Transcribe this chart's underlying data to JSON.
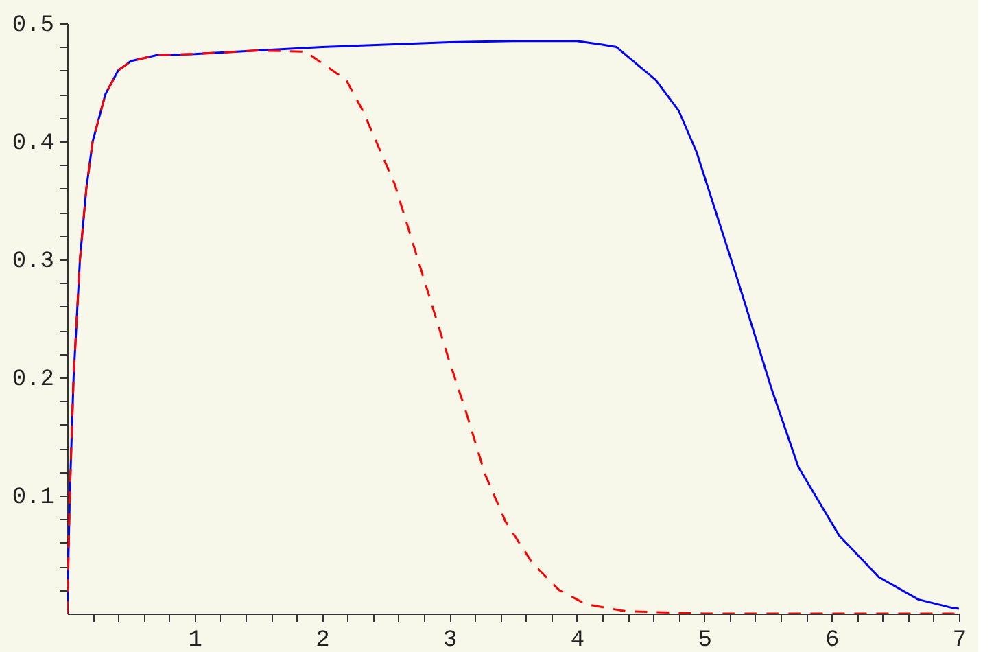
{
  "chart_data": {
    "type": "line",
    "xlim": [
      0,
      7
    ],
    "ylim": [
      0,
      0.5
    ],
    "xticks": [
      {
        "value": 0.2,
        "label": null
      },
      {
        "value": 0.4,
        "label": null
      },
      {
        "value": 0.6,
        "label": null
      },
      {
        "value": 0.8,
        "label": null
      },
      1,
      {
        "value": 1.2,
        "label": null
      },
      {
        "value": 1.4,
        "label": null
      },
      {
        "value": 1.6,
        "label": null
      },
      {
        "value": 1.8,
        "label": null
      },
      2,
      {
        "value": 2.2,
        "label": null
      },
      {
        "value": 2.4,
        "label": null
      },
      {
        "value": 2.6,
        "label": null
      },
      {
        "value": 2.8,
        "label": null
      },
      3,
      {
        "value": 3.2,
        "label": null
      },
      {
        "value": 3.4,
        "label": null
      },
      {
        "value": 3.6,
        "label": null
      },
      {
        "value": 3.8,
        "label": null
      },
      4,
      {
        "value": 4.2,
        "label": null
      },
      {
        "value": 4.4,
        "label": null
      },
      {
        "value": 4.6,
        "label": null
      },
      {
        "value": 4.8,
        "label": null
      },
      5,
      {
        "value": 5.2,
        "label": null
      },
      {
        "value": 5.4,
        "label": null
      },
      {
        "value": 5.6,
        "label": null
      },
      {
        "value": 5.8,
        "label": null
      },
      6,
      {
        "value": 6.2,
        "label": null
      },
      {
        "value": 6.4,
        "label": null
      },
      {
        "value": 6.6,
        "label": null
      },
      {
        "value": 6.8,
        "label": null
      },
      7
    ],
    "yticks": [
      {
        "value": 0.02,
        "label": null
      },
      {
        "value": 0.04,
        "label": null
      },
      {
        "value": 0.06,
        "label": null
      },
      {
        "value": 0.08,
        "label": null
      },
      {
        "value": 0.1,
        "label": "0.1"
      },
      {
        "value": 0.12,
        "label": null
      },
      {
        "value": 0.14,
        "label": null
      },
      {
        "value": 0.16,
        "label": null
      },
      {
        "value": 0.18,
        "label": null
      },
      {
        "value": 0.2,
        "label": "0.2"
      },
      {
        "value": 0.22,
        "label": null
      },
      {
        "value": 0.24,
        "label": null
      },
      {
        "value": 0.26,
        "label": null
      },
      {
        "value": 0.28,
        "label": null
      },
      {
        "value": 0.3,
        "label": "0.3"
      },
      {
        "value": 0.32,
        "label": null
      },
      {
        "value": 0.34,
        "label": null
      },
      {
        "value": 0.36,
        "label": null
      },
      {
        "value": 0.38,
        "label": null
      },
      {
        "value": 0.4,
        "label": "0.4"
      },
      {
        "value": 0.42,
        "label": null
      },
      {
        "value": 0.44,
        "label": null
      },
      {
        "value": 0.46,
        "label": null
      },
      {
        "value": 0.48,
        "label": null
      },
      {
        "value": 0.5,
        "label": "0.5"
      }
    ],
    "grid": false,
    "series": [
      {
        "color": "#0000ff",
        "line_style": "solid",
        "x": [
          0,
          0.02,
          0.05,
          0.1,
          0.15,
          0.2,
          0.3,
          0.4,
          0.5,
          0.7,
          1,
          1.5,
          2,
          3,
          3.5,
          4,
          4.2,
          4.31,
          4.62,
          4.8,
          4.94,
          5.25,
          5.53,
          5.74,
          6.06,
          6.37,
          6.68,
          6.94,
          7
        ],
        "values": [
          0,
          0.1,
          0.2,
          0.3,
          0.36,
          0.4,
          0.44,
          0.46,
          0.468,
          0.473,
          0.474,
          0.477,
          0.48,
          0.484,
          0.485,
          0.485,
          0.482,
          0.48,
          0.452,
          0.426,
          0.391,
          0.287,
          0.19,
          0.124,
          0.066,
          0.031,
          0.012,
          0.005,
          0.004
        ]
      },
      {
        "color": "#ff0000",
        "line_style": "dashed",
        "x": [
          0,
          0.02,
          0.05,
          0.1,
          0.15,
          0.2,
          0.3,
          0.4,
          0.5,
          0.7,
          1,
          1.5,
          1.87,
          2.19,
          2.32,
          2.57,
          2.79,
          2.99,
          3.13,
          3.28,
          3.44,
          3.65,
          3.86,
          4.07,
          4.38,
          5,
          6,
          7
        ],
        "values": [
          0,
          0.1,
          0.2,
          0.3,
          0.36,
          0.4,
          0.44,
          0.46,
          0.468,
          0.473,
          0.474,
          0.477,
          0.476,
          0.452,
          0.426,
          0.364,
          0.287,
          0.217,
          0.171,
          0.118,
          0.078,
          0.043,
          0.02,
          0.008,
          0.002,
          0,
          0,
          0
        ]
      }
    ]
  }
}
